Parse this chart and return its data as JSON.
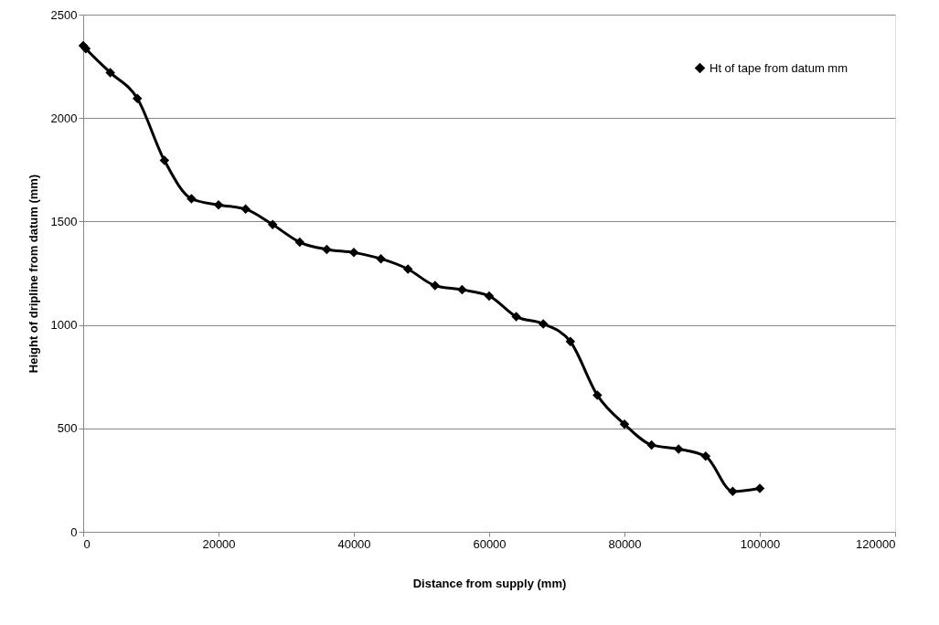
{
  "chart_data": {
    "type": "line",
    "xlabel": "Distance from supply (mm)",
    "ylabel": "Height of dripline from datum (mm)",
    "xlim": [
      0,
      120000
    ],
    "xticks": [
      0,
      20000,
      40000,
      60000,
      80000,
      100000,
      120000
    ],
    "ylim": [
      0,
      2500
    ],
    "yticks": [
      0,
      500,
      1000,
      1500,
      2000,
      2500
    ],
    "grid": "y",
    "legend": "top right",
    "marker": "diamond",
    "line_style": "solid",
    "series": [
      {
        "name": "Ht of tape from datum mm",
        "color": "#000000",
        "x": [
          0,
          400,
          4000,
          8000,
          12000,
          16000,
          20000,
          24000,
          28000,
          32000,
          36000,
          40000,
          44000,
          48000,
          52000,
          56000,
          60000,
          64000,
          68000,
          72000,
          76000,
          80000,
          84000,
          88000,
          92000,
          96000,
          100000
        ],
        "values": [
          2350,
          2335,
          2220,
          2095,
          1795,
          1610,
          1580,
          1560,
          1485,
          1400,
          1365,
          1350,
          1320,
          1270,
          1190,
          1170,
          1140,
          1040,
          1005,
          920,
          660,
          520,
          420,
          400,
          365,
          195,
          210
        ]
      }
    ]
  }
}
